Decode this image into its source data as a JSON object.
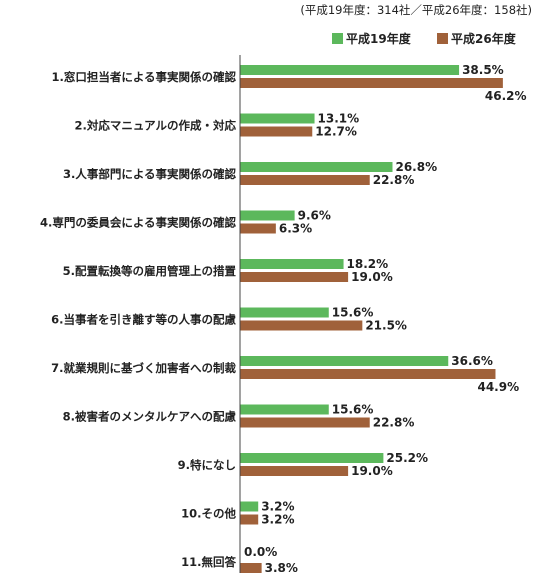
{
  "chart_data": {
    "type": "bar",
    "orientation": "horizontal",
    "note": "(平成19年度：314社／平成26年度：158社)",
    "categories": [
      "1.窓口担当者による事実関係の確認",
      "2.対応マニュアルの作成・対応",
      "3.人事部門による事実関係の確認",
      "4.専門の委員会による事実関係の確認",
      "5.配置転換等の雇用管理上の措置",
      "6.当事者を引き離す等の人事の配慮",
      "7.就業規則に基づく加害者への制裁",
      "8.被害者のメンタルケアへの配慮",
      "9.特になし",
      "10.その他",
      "11.無回答"
    ],
    "series": [
      {
        "name": "平成19年度",
        "color": "#5cb85c",
        "values": [
          38.5,
          13.1,
          26.8,
          9.6,
          18.2,
          15.6,
          36.6,
          15.6,
          25.2,
          3.2,
          0.0
        ],
        "labels": [
          "38.5%",
          "13.1%",
          "26.8%",
          "9.6%",
          "18.2%",
          "15.6%",
          "36.6%",
          "15.6%",
          "25.2%",
          "3.2%",
          "0.0%"
        ]
      },
      {
        "name": "平成26年度",
        "color": "#a0613a",
        "values": [
          46.2,
          12.7,
          22.8,
          6.3,
          19.0,
          21.5,
          44.9,
          22.8,
          19.0,
          3.2,
          3.8
        ],
        "labels": [
          "46.2%",
          "12.7%",
          "22.8%",
          "6.3%",
          "19.0%",
          "21.5%",
          "44.9%",
          "22.8%",
          "19.0%",
          "3.2%",
          "3.8%"
        ]
      }
    ],
    "xlim": [
      0,
      50
    ],
    "grid": false,
    "legend_position": "top-right"
  }
}
